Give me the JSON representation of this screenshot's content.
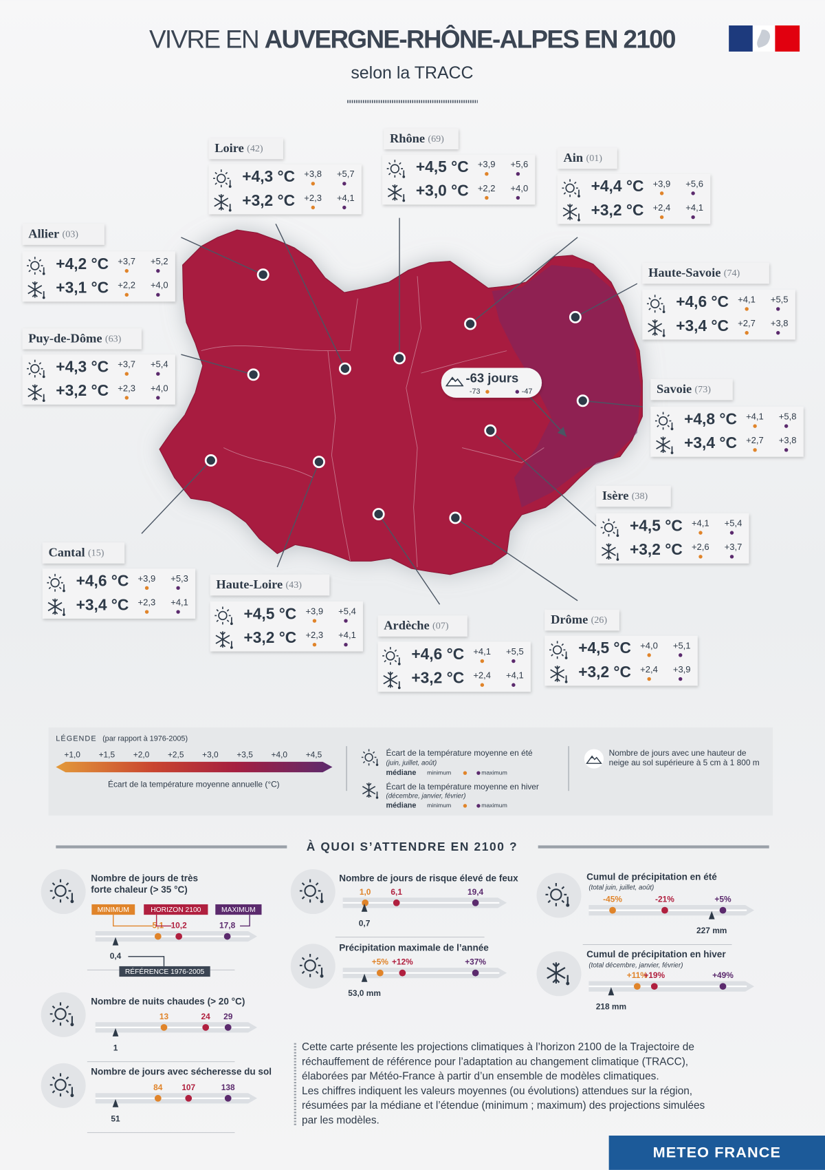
{
  "header": {
    "title_light": "VIVRE EN",
    "title_bold": "AUVERGNE-RHÔNE-ALPES EN 2100",
    "subtitle": "selon la TRACC"
  },
  "departments": [
    {
      "name": "Loire",
      "code": "(42)",
      "summer": [
        "+4,3 °C",
        "+3,8",
        "+5,7"
      ],
      "winter": [
        "+3,2 °C",
        "+2,3",
        "+4,1"
      ]
    },
    {
      "name": "Rhône",
      "code": "(69)",
      "summer": [
        "+4,5 °C",
        "+3,9",
        "+5,6"
      ],
      "winter": [
        "+3,0 °C",
        "+2,2",
        "+4,0"
      ]
    },
    {
      "name": "Ain",
      "code": "(01)",
      "summer": [
        "+4,4 °C",
        "+3,9",
        "+5,6"
      ],
      "winter": [
        "+3,2 °C",
        "+2,4",
        "+4,1"
      ]
    },
    {
      "name": "Allier",
      "code": "(03)",
      "summer": [
        "+4,2 °C",
        "+3,7",
        "+5,2"
      ],
      "winter": [
        "+3,1 °C",
        "+2,2",
        "+4,0"
      ]
    },
    {
      "name": "Haute-Savoie",
      "code": "(74)",
      "summer": [
        "+4,6 °C",
        "+4,1",
        "+5,5"
      ],
      "winter": [
        "+3,4 °C",
        "+2,7",
        "+3,8"
      ]
    },
    {
      "name": "Puy-de-Dôme",
      "code": "(63)",
      "summer": [
        "+4,3 °C",
        "+3,7",
        "+5,4"
      ],
      "winter": [
        "+3,2 °C",
        "+2,3",
        "+4,0"
      ]
    },
    {
      "name": "Savoie",
      "code": "(73)",
      "summer": [
        "+4,8 °C",
        "+4,1",
        "+5,8"
      ],
      "winter": [
        "+3,4 °C",
        "+2,7",
        "+3,8"
      ]
    },
    {
      "name": "Isère",
      "code": "(38)",
      "summer": [
        "+4,5 °C",
        "+4,1",
        "+5,4"
      ],
      "winter": [
        "+3,2 °C",
        "+2,6",
        "+3,7"
      ]
    },
    {
      "name": "Cantal",
      "code": "(15)",
      "summer": [
        "+4,6 °C",
        "+3,9",
        "+5,3"
      ],
      "winter": [
        "+3,4 °C",
        "+2,3",
        "+4,1"
      ]
    },
    {
      "name": "Haute-Loire",
      "code": "(43)",
      "summer": [
        "+4,5 °C",
        "+3,9",
        "+5,4"
      ],
      "winter": [
        "+3,2 °C",
        "+2,3",
        "+4,1"
      ]
    },
    {
      "name": "Ardèche",
      "code": "(07)",
      "summer": [
        "+4,6 °C",
        "+4,1",
        "+5,5"
      ],
      "winter": [
        "+3,2 °C",
        "+2,4",
        "+4,1"
      ]
    },
    {
      "name": "Drôme",
      "code": "(26)",
      "summer": [
        "+4,5 °C",
        "+4,0",
        "+5,1"
      ],
      "winter": [
        "+3,2 °C",
        "+2,4",
        "+3,9"
      ]
    }
  ],
  "snow": {
    "median": "-63 jours",
    "min": "-73",
    "max": "-47"
  },
  "legend": {
    "title": "LÉGENDE",
    "note": "(par rapport à 1976-2005)",
    "scale_ticks": [
      "+1,0",
      "+1,5",
      "+2,0",
      "+2,5",
      "+3,0",
      "+3,5",
      "+4,0",
      "+4,5"
    ],
    "scale_label": "Écart de la température moyenne annuelle (°C)",
    "summer": {
      "label": "Écart de la température moyenne en été",
      "months": "(juin, juillet, août)"
    },
    "winter": {
      "label": "Écart de la température moyenne en hiver",
      "months": "(décembre, janvier, février)"
    },
    "key": {
      "median": "médiane",
      "min": "minimum",
      "max": "maximum"
    },
    "snow_lines": [
      "Nombre de jours avec une hauteur de",
      "neige au sol supérieure à 5 cm à 1 800 m"
    ]
  },
  "section_title": "À QUOI S’ATTENDRE EN 2100 ?",
  "indicators": [
    {
      "title": [
        "Nombre de jours de très",
        "forte chaleur (> 35 °C)"
      ],
      "min": "5,1",
      "median": "10,2",
      "max": "17,8",
      "reference": "0,4",
      "tags": {
        "min": "MINIMUM",
        "median": "HORIZON 2100",
        "max": "MAXIMUM",
        "reference": "RÉFÉRENCE 1976-2005"
      }
    },
    {
      "title": [
        "Nombre de nuits chaudes (> 20 °C)"
      ],
      "min": "13",
      "median": "24",
      "max": "29",
      "reference": "1"
    },
    {
      "title": [
        "Nombre de jours avec sécheresse du sol"
      ],
      "min": "84",
      "median": "107",
      "max": "138",
      "reference": "51"
    },
    {
      "title": [
        "Nombre de jours de risque élevé de feux"
      ],
      "min": "1,0",
      "median": "6,1",
      "max": "19,4",
      "reference": "0,7"
    },
    {
      "title": [
        "Précipitation maximale de l’année"
      ],
      "min": "+5%",
      "median": "+12%",
      "max": "+37%",
      "reference": "53,0 mm"
    },
    {
      "title": [
        "Cumul de précipitation en été"
      ],
      "subtitle": "(total juin, juillet, août)",
      "min": "-45%",
      "median": "-21%",
      "max": "+5%",
      "reference": "227 mm"
    },
    {
      "title": [
        "Cumul de précipitation en hiver"
      ],
      "subtitle": "(total décembre, janvier, février)",
      "min": "+11%",
      "median": "+19%",
      "max": "+49%",
      "reference": "218 mm"
    }
  ],
  "paragraph": [
    "Cette carte présente les projections climatiques à l’horizon 2100 de la Trajectoire de",
    "réchauffement de référence pour l’adaptation au changement climatique (TRACC),",
    "élaborées par Météo-France à partir d’un ensemble de modèles climatiques.",
    "Les chiffres indiquent les valeurs moyennes (ou évolutions) attendues sur la région,",
    "résumées par la médiane et l’étendue (minimum ; maximum) des projections simulées",
    "par les modèles."
  ],
  "footer": "METEO FRANCE"
}
